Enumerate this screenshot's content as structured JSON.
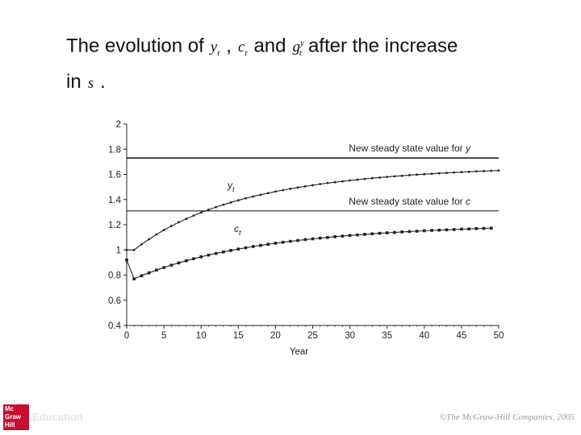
{
  "slide": {
    "title_part1": "The evolution of",
    "var_y": "y",
    "var_y_sub": "t",
    "comma": ",",
    "var_c": "c",
    "var_c_sub": "t",
    "and": "and",
    "var_g": "g",
    "var_g_sub": "t",
    "var_g_sup": "y",
    "title_part2": "after the increase",
    "line2_prefix": "in",
    "var_s": "s",
    "period": "."
  },
  "chart_data": {
    "type": "line",
    "xlabel": "Year",
    "ylabel": "",
    "xlim": [
      0,
      50
    ],
    "ylim": [
      0.4,
      2
    ],
    "xticks": [
      "0",
      "5",
      "10",
      "15",
      "20",
      "25",
      "30",
      "35",
      "40",
      "45",
      "50"
    ],
    "yticks": [
      "0.4",
      "0.6",
      "0.8",
      "1",
      "1.2",
      "1.4",
      "1.6",
      "1.8",
      "2"
    ],
    "reference_lines": [
      {
        "value": 1.73,
        "label_prefix": "New steady state value for",
        "label_var": "y"
      },
      {
        "value": 1.31,
        "label_prefix": "New steady state value for",
        "label_var": "c"
      }
    ],
    "series": [
      {
        "name": "y",
        "name_sub": "t",
        "x": [
          0,
          1,
          2,
          3,
          4,
          5,
          6,
          7,
          8,
          9,
          10,
          11,
          12,
          13,
          14,
          15,
          16,
          17,
          18,
          19,
          20,
          21,
          22,
          23,
          24,
          25,
          26,
          27,
          28,
          29,
          30,
          31,
          32,
          33,
          34,
          35,
          36,
          37,
          38,
          39,
          40,
          41,
          42,
          43,
          44,
          45,
          46,
          47,
          48,
          49,
          50
        ],
        "values": [
          1.0,
          1.0,
          1.044,
          1.085,
          1.123,
          1.158,
          1.19,
          1.22,
          1.247,
          1.273,
          1.297,
          1.319,
          1.34,
          1.359,
          1.377,
          1.394,
          1.41,
          1.425,
          1.438,
          1.451,
          1.464,
          1.475,
          1.486,
          1.496,
          1.505,
          1.514,
          1.523,
          1.531,
          1.538,
          1.545,
          1.552,
          1.558,
          1.564,
          1.57,
          1.575,
          1.58,
          1.585,
          1.589,
          1.594,
          1.598,
          1.602,
          1.605,
          1.609,
          1.612,
          1.615,
          1.618,
          1.621,
          1.624,
          1.626,
          1.629,
          1.631
        ]
      },
      {
        "name": "c",
        "name_sub": "t",
        "x": [
          0,
          1,
          2,
          3,
          4,
          5,
          6,
          7,
          8,
          9,
          10,
          11,
          12,
          13,
          14,
          15,
          16,
          17,
          18,
          19,
          20,
          21,
          22,
          23,
          24,
          25,
          26,
          27,
          28,
          29,
          30,
          31,
          32,
          33,
          34,
          35,
          36,
          37,
          38,
          39,
          40,
          41,
          42,
          43,
          44,
          45,
          46,
          47,
          48,
          49
        ],
        "values": [
          0.92,
          0.77,
          0.795,
          0.818,
          0.84,
          0.86,
          0.879,
          0.897,
          0.914,
          0.93,
          0.945,
          0.959,
          0.972,
          0.984,
          0.996,
          1.007,
          1.017,
          1.027,
          1.036,
          1.045,
          1.053,
          1.061,
          1.068,
          1.075,
          1.082,
          1.088,
          1.094,
          1.099,
          1.105,
          1.11,
          1.115,
          1.119,
          1.124,
          1.128,
          1.132,
          1.136,
          1.139,
          1.143,
          1.146,
          1.149,
          1.152,
          1.155,
          1.157,
          1.16,
          1.162,
          1.165,
          1.167,
          1.169,
          1.171,
          1.173
        ]
      }
    ]
  },
  "footer": {
    "publisher_logo_text": [
      "Mc",
      "Graw",
      "Hill"
    ],
    "publisher_mark": "Education",
    "copyright": "©The McGraw-Hill Companies, 2005"
  },
  "colors": {
    "line": "#222222",
    "logo": "#c8102e"
  }
}
